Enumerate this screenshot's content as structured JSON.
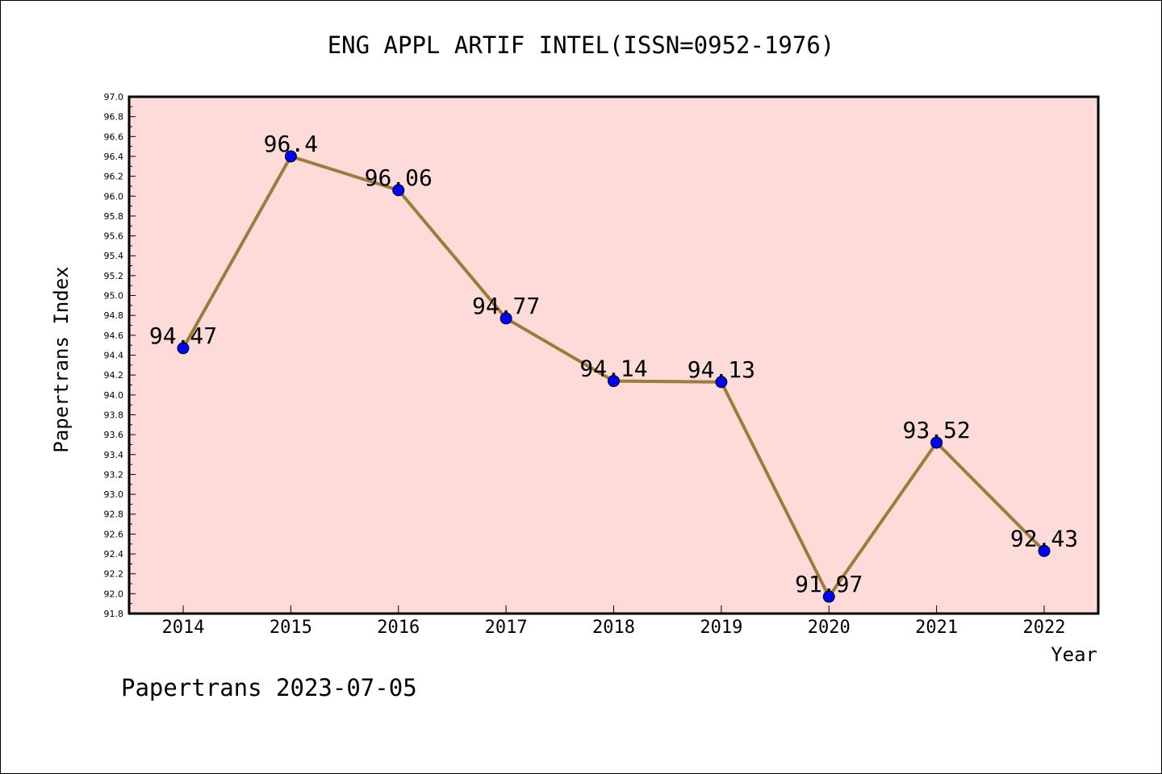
{
  "chart_data": {
    "type": "line",
    "title": "ENG APPL ARTIF INTEL(ISSN=0952-1976)",
    "xlabel": "Year",
    "ylabel": "Papertrans Index",
    "categories": [
      "2014",
      "2015",
      "2016",
      "2017",
      "2018",
      "2019",
      "2020",
      "2021",
      "2022"
    ],
    "series": [
      {
        "values": [
          94.47,
          96.4,
          96.06,
          94.77,
          94.14,
          94.13,
          91.97,
          93.52,
          92.43
        ],
        "data_labels": [
          "94.47",
          "96.4",
          "96.06",
          "94.77",
          "94.14",
          "94.13",
          "91.97",
          "93.52",
          "92.43"
        ]
      }
    ],
    "ylim": [
      91.8,
      97.0
    ],
    "yticks": [
      "91.8",
      "92.0",
      "92.2",
      "92.4",
      "92.6",
      "92.8",
      "93.0",
      "93.2",
      "93.4",
      "93.6",
      "93.8",
      "94.0",
      "94.2",
      "94.4",
      "94.6",
      "94.8",
      "95.0",
      "95.2",
      "95.4",
      "95.6",
      "95.8",
      "96.0",
      "96.2",
      "96.4",
      "96.6",
      "96.8",
      "97.0"
    ],
    "grid": false,
    "legend": "none",
    "colors": {
      "plot_background": "#fddbd9",
      "line": "#9a7d3a",
      "marker": "#0000ff"
    }
  },
  "footer": "Papertrans 2023-07-05"
}
